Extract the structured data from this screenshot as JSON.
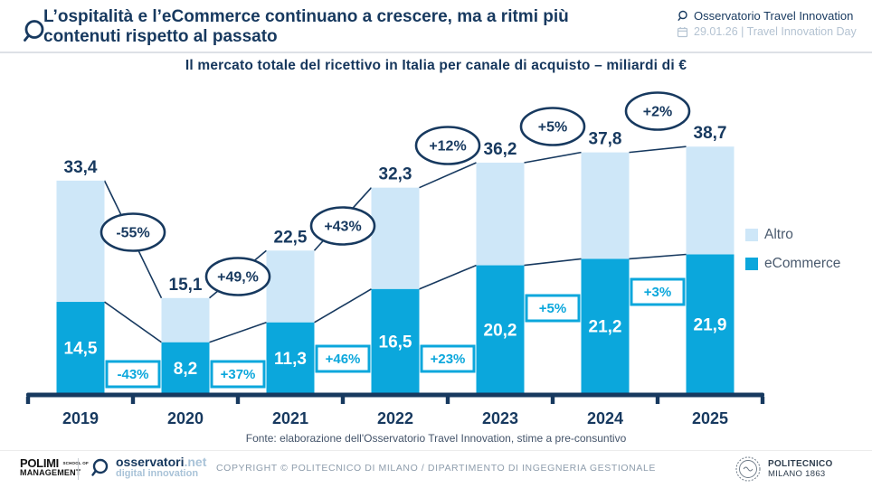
{
  "header": {
    "title_line1": "L’ospitalità e l’eCommerce continuano a crescere, ma a ritmi più",
    "title_line2": "contenuti rispetto al passato",
    "org": "Osservatorio Travel Innovation",
    "event_date": "29.01.26 | Travel Innovation Day"
  },
  "chart_data": {
    "type": "bar",
    "stacked": true,
    "title": "Il mercato totale del ricettivo in Italia per canale di acquisto – miliardi di €",
    "ylabel": "miliardi di €",
    "categories": [
      "2019",
      "2020",
      "2021",
      "2022",
      "2023",
      "2024",
      "2025"
    ],
    "series": [
      {
        "name": "eCommerce",
        "color": "#0ba7dc",
        "values": [
          14.5,
          8.2,
          11.3,
          16.5,
          20.2,
          21.2,
          21.9
        ],
        "value_labels": [
          "14,5",
          "8,2",
          "11,3",
          "16,5",
          "20,2",
          "21,2",
          "21,9"
        ]
      },
      {
        "name": "Altro",
        "color": "#cee7f8",
        "values": [
          18.9,
          6.9,
          11.2,
          15.8,
          16.0,
          16.6,
          16.8
        ]
      }
    ],
    "totals": [
      33.4,
      15.1,
      22.5,
      32.3,
      36.2,
      37.8,
      38.7
    ],
    "total_labels": [
      "33,4",
      "15,1",
      "22,5",
      "32,3",
      "36,2",
      "37,8",
      "38,7"
    ],
    "growth_total": [
      "-55%",
      "+49,%",
      "+43%",
      "+12%",
      "+5%",
      "+2%"
    ],
    "growth_ecommerce": [
      "-43%",
      "+37%",
      "+46%",
      "+23%",
      "+5%",
      "+3%"
    ],
    "legend": [
      "Altro",
      "eCommerce"
    ],
    "legend_position": "right",
    "ylim": [
      0,
      40
    ],
    "grid": false
  },
  "theme": {
    "navy": "#17395f",
    "cyan": "#0ba7dc",
    "light_blue": "#cee7f8",
    "muted_blue": "#b4c3d2",
    "gray_text": "#8e9dac"
  },
  "chart_footnote": "Fonte: elaborazione dell'Osservatorio Travel Innovation, stime a pre-consuntivo",
  "footer": {
    "polimi_line1": "POLIMI",
    "polimi_school_of": "SCHOOL OF",
    "polimi_line2": "MANAGEMENT",
    "osservatori_brand": "osservatori",
    "osservatori_tld": ".net",
    "osservatori_tagline": "digital innovation",
    "copyright": "COPYRIGHT © POLITECNICO DI MILANO / DIPARTIMENTO DI INGEGNERIA GESTIONALE",
    "politecnico_line1": "POLITECNICO",
    "politecnico_line2": "MILANO 1863"
  }
}
